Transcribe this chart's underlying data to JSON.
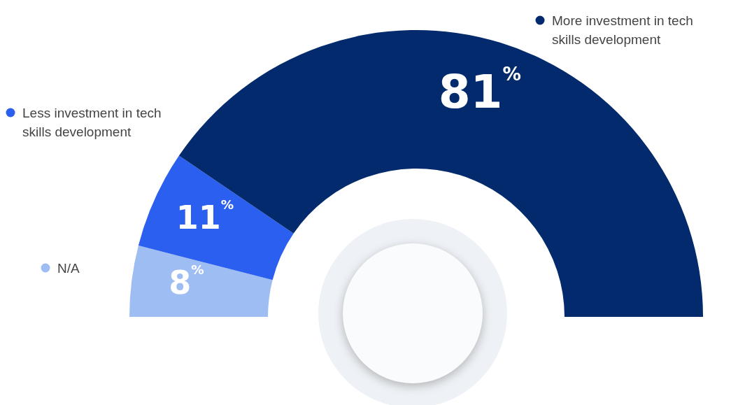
{
  "chart_data": {
    "type": "donut",
    "categories": [
      "N/A",
      "Less investment in tech skills development",
      "More investment in tech skills development"
    ],
    "values": [
      8,
      11,
      81
    ],
    "colors": [
      "#9dbdf3",
      "#2a5ff0",
      "#022a6c"
    ],
    "value_labels": [
      "8$^{%}$",
      "11$^{%}$",
      "81$^{%}$"
    ],
    "legend": "left"
  }
}
